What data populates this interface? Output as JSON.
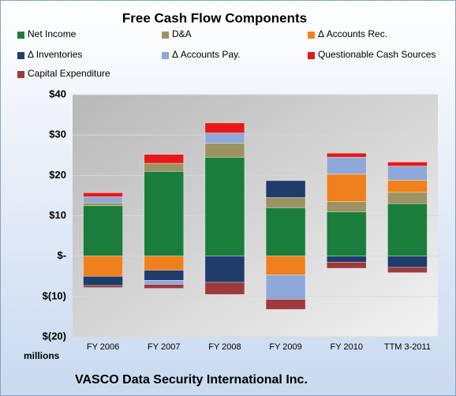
{
  "chart_data": {
    "type": "stacked_bar",
    "title": "Free Cash Flow Components",
    "categories": [
      "FY 2006",
      "FY 2007",
      "FY 2008",
      "FY 2009",
      "FY 2010",
      "TTM 3-2011"
    ],
    "series": [
      {
        "name": "Net Income",
        "color": "#1b7d3c",
        "values": [
          12.5,
          21,
          24.5,
          12,
          11,
          13
        ]
      },
      {
        "name": "D&A",
        "color": "#9c9262",
        "values": [
          0.7,
          2,
          3.5,
          2.5,
          2.5,
          2.8
        ]
      },
      {
        "name": "Δ Accounts Rec.",
        "color": "#f0801c",
        "values": [
          -5,
          -3.5,
          0,
          -4.7,
          6.8,
          3
        ]
      },
      {
        "name": "Δ Inventories",
        "color": "#1f3c6b",
        "values": [
          -2.3,
          -2.5,
          -6.5,
          4.2,
          -1.5,
          -2.8
        ]
      },
      {
        "name": "Δ Accounts Pay.",
        "color": "#8fa8da",
        "values": [
          1.5,
          -1,
          2.5,
          -6,
          4.2,
          3.5
        ]
      },
      {
        "name": "Questionable Cash Sources",
        "color": "#e81818",
        "values": [
          1,
          2.2,
          2.5,
          0,
          1,
          1
        ]
      },
      {
        "name": "Capital Expenditure",
        "color": "#9c3a3c",
        "values": [
          -0.5,
          -1,
          -3,
          -2.5,
          -1.5,
          -1.3
        ]
      }
    ],
    "ylim": [
      -20,
      40
    ],
    "yticks": [
      {
        "value": -20,
        "label": "$(20)"
      },
      {
        "value": -10,
        "label": "$(10)"
      },
      {
        "value": 0,
        "label": "$-"
      },
      {
        "value": 10,
        "label": "$10"
      },
      {
        "value": 20,
        "label": "$20"
      },
      {
        "value": 30,
        "label": "$30"
      },
      {
        "value": 40,
        "label": "$40"
      }
    ],
    "y_unit_label": "millions",
    "footer": "VASCO Data Security International Inc.",
    "grid": true
  }
}
